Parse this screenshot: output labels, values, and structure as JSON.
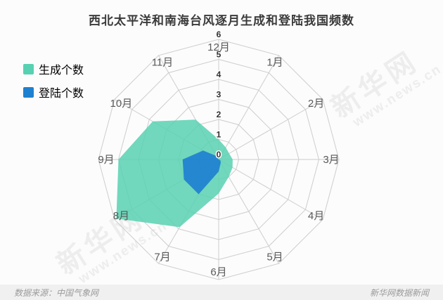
{
  "title": "西北太平洋和南海台风逐月生成和登陆我国频数",
  "legend": {
    "items": [
      {
        "label": "生成个数",
        "color": "#58d1b2"
      },
      {
        "label": "登陆个数",
        "color": "#1e80d0"
      }
    ]
  },
  "footer": {
    "source": "数据来源：中国气象网",
    "credit": "新华网数据新闻"
  },
  "watermark": {
    "line1": "新华网",
    "line2": "www.news.cn"
  },
  "chart_data": {
    "type": "radar",
    "title": "西北太平洋和南海台风逐月生成和登陆我国频数",
    "axes_clockwise_from_top": [
      "12月",
      "1月",
      "2月",
      "3月",
      "4月",
      "5月",
      "6月",
      "7月",
      "8月",
      "9月",
      "10月",
      "11月"
    ],
    "radial_min": 0,
    "radial_max": 6,
    "ticks": [
      0,
      1,
      2,
      3,
      4,
      5,
      6
    ],
    "grid": "polygon",
    "grid_color": "#cdcdcd",
    "legend_position": "top-left",
    "series": [
      {
        "name": "生成个数",
        "color": "#58d1b2",
        "fill_opacity": 0.85,
        "values": {
          "1月": 0.7,
          "2月": 0.6,
          "3月": 0.7,
          "4月": 0.8,
          "5月": 1.0,
          "6月": 1.7,
          "7月": 3.9,
          "8月": 5.9,
          "9月": 5.0,
          "10月": 3.8,
          "11月": 2.3,
          "12月": 1.0
        }
      },
      {
        "name": "登陆个数",
        "color": "#1e80d0",
        "fill_opacity": 0.92,
        "values": {
          "1月": 0.0,
          "2月": 0.0,
          "3月": 0.0,
          "4月": 0.1,
          "5月": 0.2,
          "6月": 0.6,
          "7月": 2.0,
          "8月": 2.0,
          "9月": 1.8,
          "10月": 0.9,
          "11月": 0.2,
          "12月": 0.0
        }
      }
    ]
  }
}
